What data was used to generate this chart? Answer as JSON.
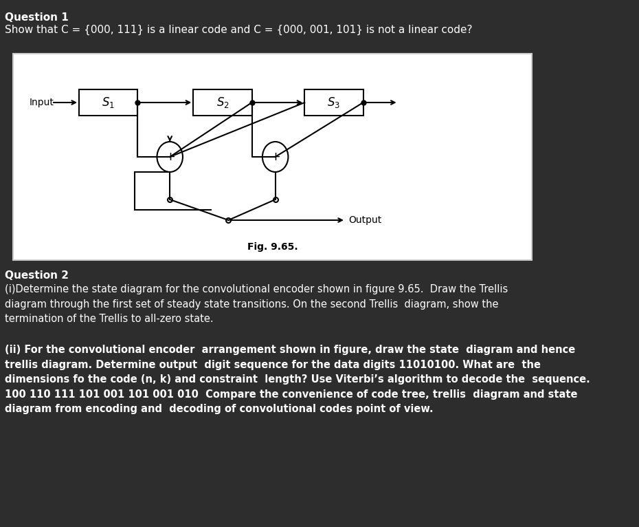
{
  "bg_color": "#2d2d2d",
  "text_color": "#ffffff",
  "diagram_bg": "#ffffff",
  "diagram_border": "#ffffff",
  "q1_title": "Question 1",
  "q1_text": "Show that C = {000, 111} is a linear code and C = {000, 001, 101} is not a linear code?",
  "fig_caption": "Fig. 9.65.",
  "q2_title": "Question 2",
  "q2_text_i": "(i)Determine the state diagram for the convolutional encoder shown in figure 9.65.  Draw the Trellis\ndiagram through the first set of steady state transitions. On the second Trellis  diagram, show the\ntermination of the Trellis to all-zero state.",
  "q2_text_ii": "(ii) For the convolutional encoder  arrangement shown in figure, draw the state  diagram and hence\ntrellis diagram. Determine output  digit sequence for the data digits 11010100. What are  the\ndimensions fo the code (n, k) and constraint  length? Use Viterbi’s algorithm to decode the  sequence.\n100 110 111 101 001 101 001 010  Compare the convenience of code tree, trellis  diagram and state\ndiagram from encoding and  decoding of convolutional codes point of view."
}
